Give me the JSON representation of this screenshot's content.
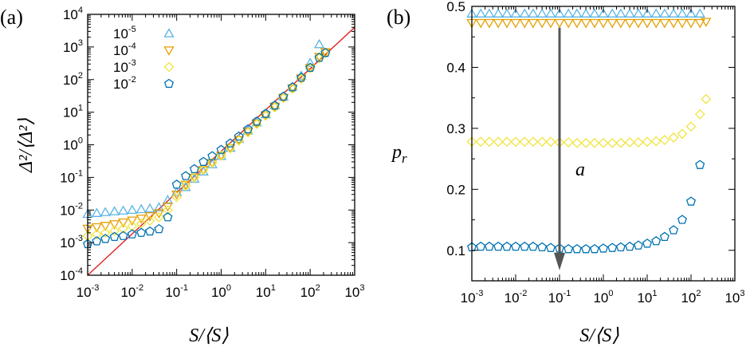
{
  "colors": {
    "s1": "#5ab4e5",
    "s2": "#e69f00",
    "s3": "#f0e442",
    "s4": "#0072b2",
    "fit": "#e02020",
    "arrow": "#555555"
  },
  "chart_data": [
    {
      "panel_label": "(a)",
      "type": "scatter",
      "xscale": "log",
      "yscale": "log",
      "xlim": [
        0.001,
        1000
      ],
      "ylim": [
        0.0001,
        10000
      ],
      "xlabel": "S/⟨S⟩",
      "ylabel": "Δ²/⟨Δ²⟩",
      "xticks": [
        {
          "m": "10",
          "e": "-3"
        },
        {
          "m": "10",
          "e": "-2"
        },
        {
          "m": "10",
          "e": "-1"
        },
        {
          "m": "10",
          "e": "0"
        },
        {
          "m": "10",
          "e": "1"
        },
        {
          "m": "10",
          "e": "2"
        },
        {
          "m": "10",
          "e": "3"
        }
      ],
      "yticks": [
        {
          "m": "10",
          "e": "-4"
        },
        {
          "m": "10",
          "e": "-3"
        },
        {
          "m": "10",
          "e": "-2"
        },
        {
          "m": "10",
          "e": "-1"
        },
        {
          "m": "10",
          "e": "0"
        },
        {
          "m": "10",
          "e": "1"
        },
        {
          "m": "10",
          "e": "2"
        },
        {
          "m": "10",
          "e": "3"
        },
        {
          "m": "10",
          "e": "4"
        }
      ],
      "legend_position": "top-left",
      "series": [
        {
          "name": "10",
          "exp": "-5",
          "marker": "triangle-up",
          "color": "#5ab4e5",
          "x": [
            0.001,
            0.0016,
            0.0025,
            0.004,
            0.0063,
            0.01,
            0.016,
            0.025,
            0.04,
            0.063,
            0.1,
            0.16,
            0.25,
            0.4,
            0.63,
            1,
            1.6,
            2.5,
            4,
            6.3,
            10,
            16,
            25,
            40,
            63,
            100,
            160
          ],
          "y": [
            0.0075,
            0.008,
            0.0085,
            0.009,
            0.0095,
            0.01,
            0.0105,
            0.011,
            0.012,
            0.02,
            0.035,
            0.05,
            0.09,
            0.15,
            0.25,
            0.45,
            0.8,
            1.5,
            2.7,
            4.8,
            8.5,
            16,
            30,
            60,
            130,
            320,
            1200
          ]
        },
        {
          "name": "10",
          "exp": "-4",
          "marker": "triangle-down",
          "color": "#e69f00",
          "x": [
            0.001,
            0.0016,
            0.0025,
            0.004,
            0.0063,
            0.01,
            0.016,
            0.025,
            0.04,
            0.063,
            0.1,
            0.16,
            0.25,
            0.4,
            0.63,
            1,
            1.6,
            2.5,
            4,
            6.3,
            10,
            16,
            25,
            40,
            63,
            100,
            160,
            220
          ],
          "y": [
            0.0027,
            0.003,
            0.0033,
            0.0037,
            0.0042,
            0.0048,
            0.0055,
            0.0065,
            0.008,
            0.013,
            0.03,
            0.06,
            0.1,
            0.17,
            0.28,
            0.47,
            0.8,
            1.4,
            2.5,
            4.5,
            8,
            15,
            28,
            55,
            110,
            230,
            500,
            700
          ]
        },
        {
          "name": "10",
          "exp": "-3",
          "marker": "diamond",
          "color": "#f0e442",
          "x": [
            0.001,
            0.0016,
            0.0025,
            0.004,
            0.0063,
            0.01,
            0.016,
            0.025,
            0.04,
            0.063,
            0.1,
            0.16,
            0.25,
            0.4,
            0.63,
            1,
            1.6,
            2.5,
            4,
            6.3,
            10,
            16,
            25,
            40,
            63,
            100,
            160,
            220
          ],
          "y": [
            0.0016,
            0.0018,
            0.002,
            0.0023,
            0.0027,
            0.0032,
            0.0038,
            0.0047,
            0.006,
            0.01,
            0.025,
            0.055,
            0.1,
            0.17,
            0.28,
            0.46,
            0.78,
            1.35,
            2.4,
            4.3,
            7.8,
            14,
            27,
            52,
            105,
            220,
            450,
            650
          ]
        },
        {
          "name": "10",
          "exp": "-2",
          "marker": "pentagon",
          "color": "#0072b2",
          "x": [
            0.001,
            0.0016,
            0.0025,
            0.004,
            0.0063,
            0.01,
            0.016,
            0.025,
            0.04,
            0.063,
            0.1,
            0.16,
            0.25,
            0.4,
            0.63,
            1,
            1.6,
            2.5,
            4,
            6.3,
            10,
            16,
            25,
            40,
            63,
            100,
            160,
            220
          ],
          "y": [
            0.0009,
            0.0011,
            0.0013,
            0.0015,
            0.0016,
            0.0018,
            0.002,
            0.0022,
            0.0026,
            0.006,
            0.06,
            0.11,
            0.18,
            0.3,
            0.45,
            0.7,
            1.1,
            1.8,
            3,
            5.2,
            9,
            16,
            30,
            58,
            115,
            230,
            470,
            660
          ]
        }
      ],
      "fit_line": {
        "x": [
          0.001,
          1000
        ],
        "y": [
          0.0001,
          4000
        ]
      }
    },
    {
      "panel_label": "(b)",
      "type": "scatter",
      "xscale": "log",
      "yscale": "linear",
      "xlim": [
        0.001,
        1000
      ],
      "ylim": [
        0.05,
        0.5
      ],
      "xlabel": "S/⟨S⟩",
      "ylabel": "p",
      "ylabel_sub": "r",
      "annotation": "a",
      "xticks": [
        {
          "m": "10",
          "e": "-3"
        },
        {
          "m": "10",
          "e": "-2"
        },
        {
          "m": "10",
          "e": "-1"
        },
        {
          "m": "10",
          "e": "0"
        },
        {
          "m": "10",
          "e": "1"
        },
        {
          "m": "10",
          "e": "2"
        },
        {
          "m": "10",
          "e": "3"
        }
      ],
      "yticks": [
        "0.1",
        "0.2",
        "0.3",
        "0.4",
        "0.5"
      ],
      "series": [
        {
          "name": "10^-5",
          "marker": "triangle-up",
          "color": "#5ab4e5",
          "x": [
            0.001,
            0.0016,
            0.0025,
            0.004,
            0.0063,
            0.01,
            0.016,
            0.025,
            0.04,
            0.063,
            0.1,
            0.16,
            0.25,
            0.4,
            0.63,
            1,
            1.6,
            2.5,
            4,
            6.3,
            10,
            16,
            25,
            40,
            63,
            100,
            160
          ],
          "y": [
            0.488,
            0.488,
            0.488,
            0.488,
            0.488,
            0.488,
            0.488,
            0.488,
            0.488,
            0.488,
            0.488,
            0.488,
            0.488,
            0.488,
            0.488,
            0.488,
            0.488,
            0.488,
            0.488,
            0.488,
            0.488,
            0.488,
            0.488,
            0.488,
            0.488,
            0.488,
            0.488
          ]
        },
        {
          "name": "10^-4",
          "marker": "triangle-down",
          "color": "#e69f00",
          "x": [
            0.001,
            0.0016,
            0.0025,
            0.004,
            0.0063,
            0.01,
            0.016,
            0.025,
            0.04,
            0.063,
            0.1,
            0.16,
            0.25,
            0.4,
            0.63,
            1,
            1.6,
            2.5,
            4,
            6.3,
            10,
            16,
            25,
            40,
            63,
            100,
            160,
            220
          ],
          "y": [
            0.473,
            0.473,
            0.473,
            0.473,
            0.473,
            0.473,
            0.473,
            0.473,
            0.473,
            0.473,
            0.473,
            0.473,
            0.473,
            0.473,
            0.473,
            0.473,
            0.473,
            0.473,
            0.473,
            0.473,
            0.473,
            0.473,
            0.473,
            0.473,
            0.473,
            0.473,
            0.473,
            0.475
          ]
        },
        {
          "name": "10^-3",
          "marker": "diamond",
          "color": "#f0e442",
          "x": [
            0.001,
            0.0016,
            0.0025,
            0.004,
            0.0063,
            0.01,
            0.016,
            0.025,
            0.04,
            0.063,
            0.1,
            0.16,
            0.25,
            0.4,
            0.63,
            1,
            1.6,
            2.5,
            4,
            6.3,
            10,
            16,
            25,
            40,
            63,
            100,
            160,
            220
          ],
          "y": [
            0.278,
            0.278,
            0.278,
            0.278,
            0.278,
            0.278,
            0.278,
            0.278,
            0.278,
            0.278,
            0.277,
            0.277,
            0.276,
            0.276,
            0.276,
            0.276,
            0.276,
            0.276,
            0.277,
            0.277,
            0.278,
            0.279,
            0.281,
            0.285,
            0.291,
            0.303,
            0.323,
            0.348
          ]
        },
        {
          "name": "10^-2",
          "marker": "pentagon",
          "color": "#0072b2",
          "x": [
            0.001,
            0.0016,
            0.0025,
            0.004,
            0.0063,
            0.01,
            0.016,
            0.025,
            0.04,
            0.063,
            0.1,
            0.16,
            0.25,
            0.4,
            0.63,
            1,
            1.6,
            2.5,
            4,
            6.3,
            10,
            16,
            25,
            40,
            63,
            100,
            160
          ],
          "y": [
            0.105,
            0.106,
            0.106,
            0.106,
            0.106,
            0.106,
            0.106,
            0.106,
            0.105,
            0.104,
            0.103,
            0.102,
            0.102,
            0.102,
            0.102,
            0.103,
            0.104,
            0.105,
            0.106,
            0.108,
            0.111,
            0.115,
            0.122,
            0.133,
            0.15,
            0.18,
            0.24
          ]
        }
      ],
      "arrow": {
        "x": 0.1,
        "y_from": 0.465,
        "y_to": 0.07
      }
    }
  ]
}
